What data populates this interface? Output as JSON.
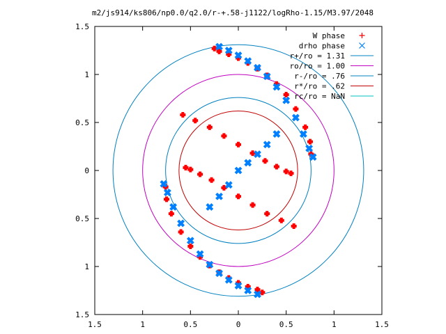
{
  "chart_data": {
    "type": "scatter",
    "title": "m2/js914/ks806/np0.0/q2.0/r-+.58-j1122/logRho-1.15/M3.97/2048",
    "xlim": [
      -1.5,
      1.5
    ],
    "ylim": [
      -1.5,
      1.5
    ],
    "x_ticks": [
      -1.5,
      -1,
      -0.5,
      0,
      0.5,
      1,
      1.5
    ],
    "y_ticks": [
      -1.5,
      -1,
      -0.5,
      0,
      0.5,
      1,
      1.5
    ],
    "x_tick_labels": [
      "1.5",
      "1",
      "0.5",
      "0",
      "0.5",
      "1",
      "1.5"
    ],
    "y_tick_labels": [
      "1.5",
      "1",
      "0.5",
      "0",
      "0.5",
      "1",
      "1.5"
    ],
    "grid": false,
    "legend_position": "top-right",
    "series": [
      {
        "name": "W phase",
        "marker": "+",
        "color": "#ff0000",
        "points": [
          [
            -0.25,
            1.27
          ],
          [
            -0.2,
            1.24
          ],
          [
            -0.1,
            1.21
          ],
          [
            0.0,
            1.17
          ],
          [
            0.1,
            1.12
          ],
          [
            0.2,
            1.06
          ],
          [
            0.3,
            0.99
          ],
          [
            0.4,
            0.9
          ],
          [
            0.5,
            0.79
          ],
          [
            0.6,
            0.64
          ],
          [
            0.7,
            0.45
          ],
          [
            0.75,
            0.3
          ],
          [
            0.76,
            0.17
          ],
          [
            -0.58,
            0.58
          ],
          [
            -0.45,
            0.52
          ],
          [
            -0.3,
            0.45
          ],
          [
            -0.15,
            0.36
          ],
          [
            0.0,
            0.27
          ],
          [
            0.15,
            0.18
          ],
          [
            0.28,
            0.1
          ],
          [
            0.4,
            0.04
          ],
          [
            0.5,
            -0.01
          ],
          [
            0.55,
            -0.03
          ],
          [
            0.25,
            -1.27
          ],
          [
            0.2,
            -1.24
          ],
          [
            0.1,
            -1.21
          ],
          [
            0.0,
            -1.17
          ],
          [
            -0.1,
            -1.12
          ],
          [
            -0.2,
            -1.06
          ],
          [
            -0.3,
            -0.99
          ],
          [
            -0.4,
            -0.9
          ],
          [
            -0.5,
            -0.79
          ],
          [
            -0.6,
            -0.64
          ],
          [
            -0.7,
            -0.45
          ],
          [
            -0.75,
            -0.3
          ],
          [
            -0.76,
            -0.17
          ],
          [
            0.58,
            -0.58
          ],
          [
            0.45,
            -0.52
          ],
          [
            0.3,
            -0.45
          ],
          [
            0.15,
            -0.36
          ],
          [
            0.0,
            -0.27
          ],
          [
            -0.15,
            -0.18
          ],
          [
            -0.28,
            -0.1
          ],
          [
            -0.4,
            -0.04
          ],
          [
            -0.5,
            0.01
          ],
          [
            -0.55,
            0.03
          ]
        ]
      },
      {
        "name": "drho phase",
        "marker": "x",
        "color": "#0080ff",
        "points": [
          [
            -0.2,
            1.29
          ],
          [
            -0.1,
            1.25
          ],
          [
            0.0,
            1.2
          ],
          [
            0.1,
            1.14
          ],
          [
            0.2,
            1.07
          ],
          [
            0.3,
            0.98
          ],
          [
            0.4,
            0.87
          ],
          [
            0.5,
            0.73
          ],
          [
            0.6,
            0.55
          ],
          [
            0.68,
            0.38
          ],
          [
            0.74,
            0.23
          ],
          [
            0.78,
            0.14
          ],
          [
            -0.3,
            -0.38
          ],
          [
            -0.2,
            -0.27
          ],
          [
            -0.1,
            -0.15
          ],
          [
            0.0,
            0.0
          ],
          [
            0.1,
            0.08
          ],
          [
            0.2,
            0.17
          ],
          [
            0.3,
            0.27
          ],
          [
            0.4,
            0.38
          ],
          [
            0.2,
            -1.29
          ],
          [
            0.1,
            -1.25
          ],
          [
            0.0,
            -1.2
          ],
          [
            -0.1,
            -1.14
          ],
          [
            -0.2,
            -1.07
          ],
          [
            -0.3,
            -0.98
          ],
          [
            -0.4,
            -0.87
          ],
          [
            -0.5,
            -0.73
          ],
          [
            -0.6,
            -0.55
          ],
          [
            -0.68,
            -0.38
          ],
          [
            -0.74,
            -0.23
          ],
          [
            -0.78,
            -0.14
          ]
        ]
      }
    ],
    "circles": [
      {
        "name": "r+/ro = 1.31",
        "radius": 1.31,
        "color": "#0080c0"
      },
      {
        "name": "ro/ro = 1.00",
        "radius": 1.0,
        "color": "#c000c0"
      },
      {
        "name": "r-/ro = .76",
        "radius": 0.76,
        "color": "#0080c0"
      },
      {
        "name": "r*/ro = .62",
        "radius": 0.62,
        "color": "#c00000"
      },
      {
        "name": "rc/ro = NaN",
        "radius": null,
        "color": "#00c0c0"
      }
    ]
  }
}
